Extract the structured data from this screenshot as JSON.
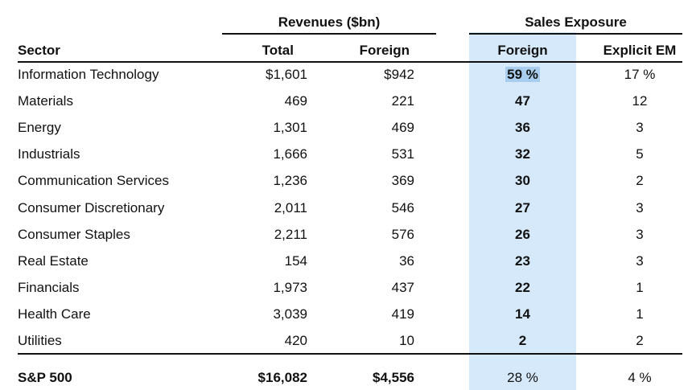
{
  "chart_data": {
    "type": "table",
    "group_headers": {
      "revenues": "Revenues  ($bn)",
      "sales_exposure": "Sales Exposure"
    },
    "columns": {
      "sector": "Sector",
      "total": "Total",
      "foreign_rev": "Foreign",
      "foreign_exp": "Foreign",
      "explicit_em": "Explicit EM"
    },
    "rows": [
      {
        "sector": "Information Technology",
        "total": "$1,601",
        "foreign_rev": "$942",
        "foreign_exp": "59 %",
        "explicit_em": "17 %"
      },
      {
        "sector": "Materials",
        "total": "469",
        "foreign_rev": "221",
        "foreign_exp": "47",
        "explicit_em": "12"
      },
      {
        "sector": "Energy",
        "total": "1,301",
        "foreign_rev": "469",
        "foreign_exp": "36",
        "explicit_em": "3"
      },
      {
        "sector": "Industrials",
        "total": "1,666",
        "foreign_rev": "531",
        "foreign_exp": "32",
        "explicit_em": "5"
      },
      {
        "sector": "Communication Services",
        "total": "1,236",
        "foreign_rev": "369",
        "foreign_exp": "30",
        "explicit_em": "2"
      },
      {
        "sector": "Consumer Discretionary",
        "total": "2,011",
        "foreign_rev": "546",
        "foreign_exp": "27",
        "explicit_em": "3"
      },
      {
        "sector": "Consumer Staples",
        "total": "2,211",
        "foreign_rev": "576",
        "foreign_exp": "26",
        "explicit_em": "3"
      },
      {
        "sector": "Real Estate",
        "total": "154",
        "foreign_rev": "36",
        "foreign_exp": "23",
        "explicit_em": "3"
      },
      {
        "sector": "Financials",
        "total": "1,973",
        "foreign_rev": "437",
        "foreign_exp": "22",
        "explicit_em": "1"
      },
      {
        "sector": "Health Care",
        "total": "3,039",
        "foreign_rev": "419",
        "foreign_exp": "14",
        "explicit_em": "1"
      },
      {
        "sector": "Utilities",
        "total": "420",
        "foreign_rev": "10",
        "foreign_exp": "2",
        "explicit_em": "2"
      }
    ],
    "total_row": {
      "sector": "S&P 500",
      "total": "$16,082",
      "foreign_rev": "$4,556",
      "foreign_exp": "28 %",
      "explicit_em": "4 %"
    },
    "highlight_color": "#d6e9fa"
  }
}
